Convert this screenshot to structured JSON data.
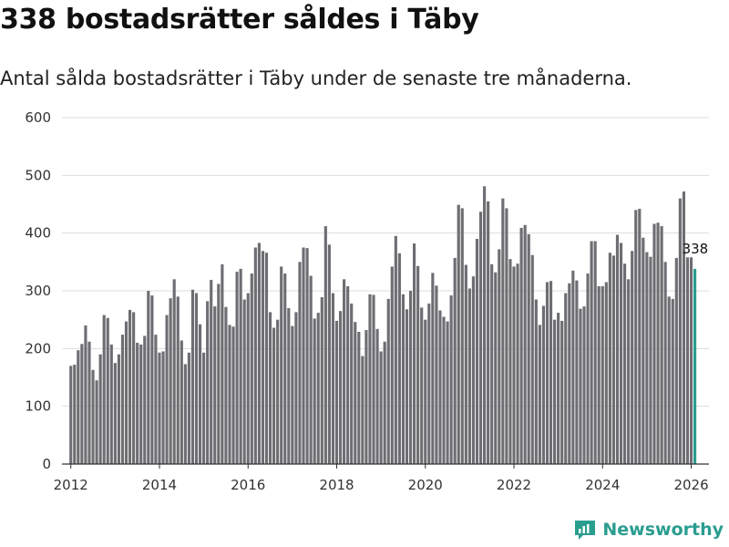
{
  "title": "338 bostadsrätter såldes i Täby",
  "subtitle": "Antal sålda bostadsrätter i Täby under de senaste tre månaderna.",
  "brand": {
    "name": "Newsworthy",
    "icon": "newsworthy-logo-icon"
  },
  "colors": {
    "bar": "#6e6d73",
    "highlight": "#2a9d8f",
    "grid": "#dddddd",
    "axis": "#333333"
  },
  "chart_data": {
    "type": "bar",
    "title": "338 bostadsrätter såldes i Täby",
    "xlabel": "",
    "ylabel": "",
    "ylim": [
      0,
      600
    ],
    "yticks": [
      "0",
      "100",
      "200",
      "300",
      "400",
      "500",
      "600"
    ],
    "xticks": [
      "2012",
      "2014",
      "2016",
      "2018",
      "2020",
      "2022",
      "2024",
      "2026"
    ],
    "xlim": [
      2011.8,
      2026.4
    ],
    "start": 2012.0,
    "step": 0.08333,
    "grid": true,
    "annotation": {
      "label": "338",
      "value": 338
    },
    "values": [
      170,
      172,
      197,
      208,
      240,
      212,
      163,
      145,
      190,
      258,
      253,
      207,
      175,
      190,
      224,
      247,
      267,
      263,
      210,
      207,
      222,
      300,
      292,
      224,
      193,
      195,
      258,
      287,
      320,
      290,
      214,
      173,
      193,
      302,
      296,
      242,
      193,
      282,
      319,
      273,
      312,
      346,
      272,
      241,
      238,
      333,
      338,
      285,
      296,
      330,
      375,
      383,
      369,
      366,
      263,
      236,
      250,
      342,
      330,
      270,
      239,
      263,
      350,
      375,
      374,
      326,
      252,
      262,
      289,
      412,
      380,
      296,
      248,
      265,
      320,
      308,
      278,
      246,
      229,
      187,
      232,
      294,
      293,
      234,
      195,
      212,
      286,
      342,
      395,
      365,
      294,
      268,
      300,
      382,
      343,
      271,
      250,
      278,
      331,
      309,
      266,
      255,
      247,
      292,
      357,
      449,
      443,
      345,
      304,
      325,
      390,
      437,
      481,
      455,
      346,
      332,
      372,
      460,
      443,
      355,
      342,
      347,
      409,
      414,
      398,
      362,
      285,
      241,
      274,
      315,
      317,
      250,
      262,
      248,
      296,
      313,
      335,
      318,
      269,
      273,
      330,
      386,
      386,
      308,
      308,
      315,
      366,
      361,
      397,
      383,
      347,
      320,
      369,
      440,
      442,
      392,
      367,
      359,
      416,
      418,
      412,
      350,
      290,
      286,
      357,
      460,
      472,
      358,
      358,
      338
    ]
  }
}
